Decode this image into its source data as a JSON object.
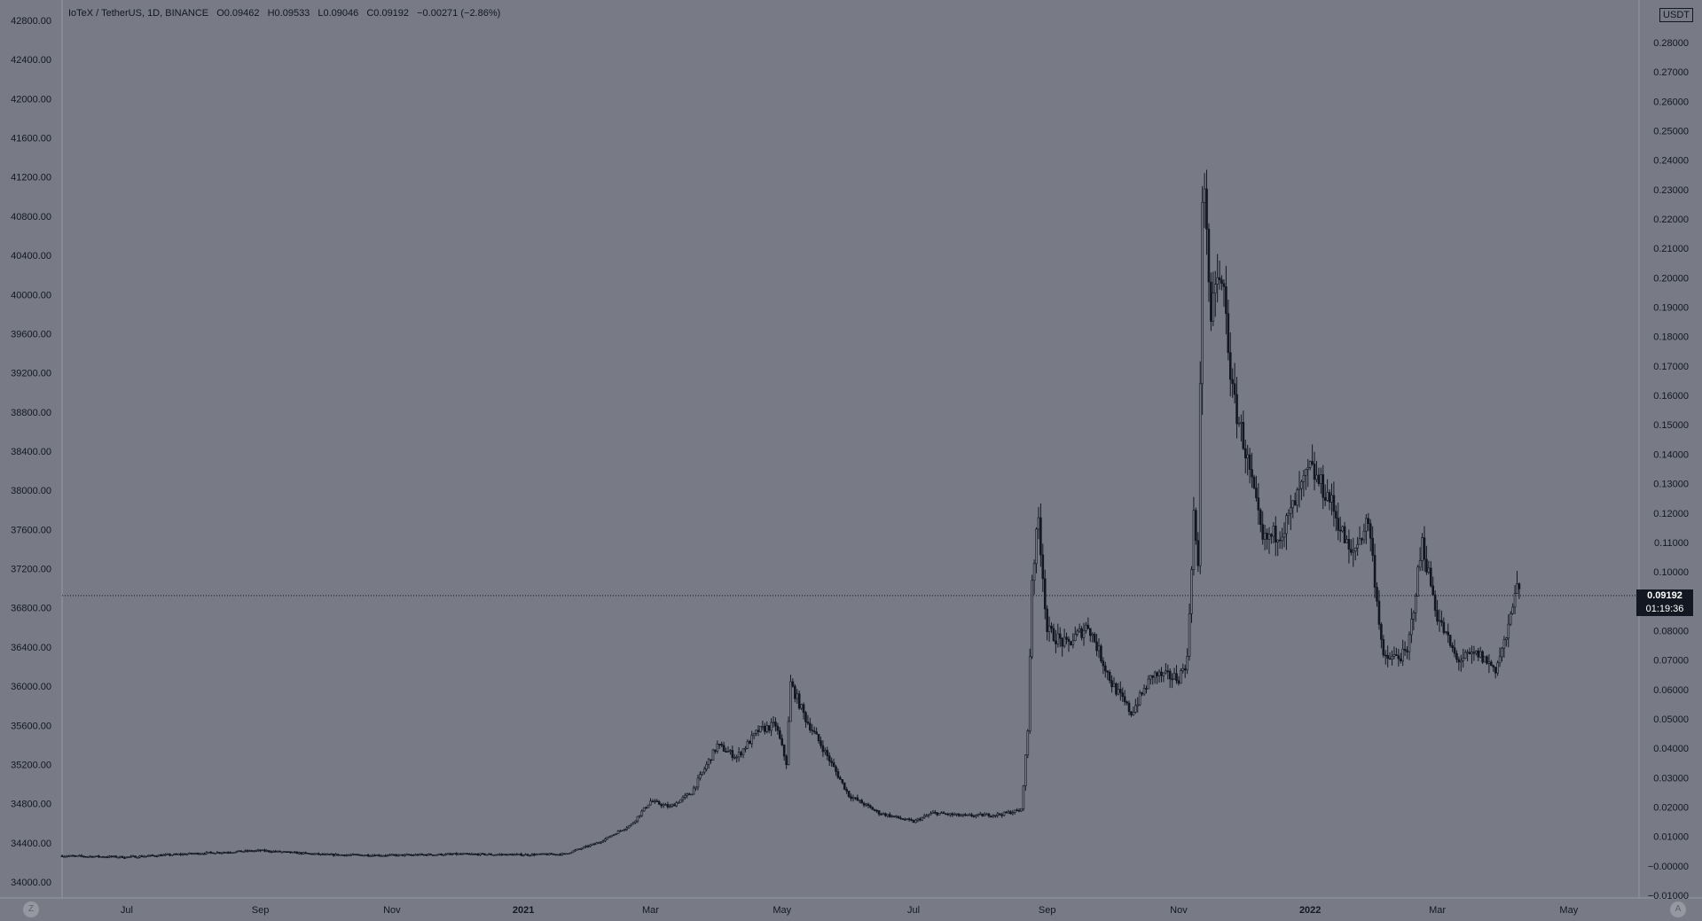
{
  "legend": {
    "symbol": "IoTeX / TetherUS, 1D, BINANCE",
    "open": "O0.09462",
    "high": "H0.09533",
    "low": "L0.09046",
    "close": "C0.09192",
    "change": "−0.00271 (−2.86%)"
  },
  "unit_badge": "USDT",
  "top_right_value": "0",
  "last_price": {
    "value": "0.09192",
    "countdown": "01:19:36"
  },
  "buttons": {
    "goto_start": "Z",
    "auto_scale": "A"
  },
  "colors": {
    "background": "#787b86",
    "text": "#131722",
    "candle": "#131722",
    "price_line": "#131722"
  },
  "chart_data": {
    "type": "candlestick",
    "title": "",
    "x_labels": [
      "Jul",
      "Sep",
      "Nov",
      "2021",
      "Mar",
      "May",
      "Jul",
      "Sep",
      "Nov",
      "2022",
      "Mar",
      "May"
    ],
    "left_axis": {
      "ticks": [
        "42800.00",
        "42400.00",
        "42000.00",
        "41600.00",
        "41200.00",
        "40800.00",
        "40400.00",
        "40000.00",
        "39600.00",
        "39200.00",
        "38800.00",
        "38400.00",
        "38000.00",
        "37600.00",
        "37200.00",
        "36800.00",
        "36400.00",
        "36000.00",
        "35600.00",
        "35200.00",
        "34800.00",
        "34400.00",
        "34000.00"
      ],
      "range": [
        34000,
        42800
      ]
    },
    "right_axis": {
      "ticks": [
        "0.28000",
        "0.27000",
        "0.26000",
        "0.25000",
        "0.24000",
        "0.23000",
        "0.22000",
        "0.21000",
        "0.20000",
        "0.19000",
        "0.18000",
        "0.17000",
        "0.16000",
        "0.15000",
        "0.14000",
        "0.13000",
        "0.12000",
        "0.11000",
        "0.10000",
        "0.09000",
        "0.08000",
        "0.07000",
        "0.06000",
        "0.05000",
        "0.04000",
        "0.03000",
        "0.02000",
        "0.01000",
        "−0.00000",
        "−0.01000"
      ],
      "range": [
        -0.01,
        0.28
      ],
      "unit": "USDT"
    },
    "series": [
      {
        "close_points": [
          [
            "2020-06-01",
            0.0034
          ],
          [
            "2020-07-01",
            0.003
          ],
          [
            "2020-08-01",
            0.0042
          ],
          [
            "2020-09-01",
            0.0052
          ],
          [
            "2020-10-01",
            0.0038
          ],
          [
            "2020-11-01",
            0.0036
          ],
          [
            "2020-12-01",
            0.004
          ],
          [
            "2021-01-01",
            0.0038
          ],
          [
            "2021-01-20",
            0.004
          ],
          [
            "2021-02-05",
            0.008
          ],
          [
            "2021-02-20",
            0.014
          ],
          [
            "2021-03-01",
            0.022
          ],
          [
            "2021-03-10",
            0.02
          ],
          [
            "2021-03-20",
            0.025
          ],
          [
            "2021-04-01",
            0.041
          ],
          [
            "2021-04-10",
            0.037
          ],
          [
            "2021-04-20",
            0.046
          ],
          [
            "2021-04-28",
            0.048
          ],
          [
            "2021-05-03",
            0.035
          ],
          [
            "2021-05-05",
            0.062
          ],
          [
            "2021-05-12",
            0.05
          ],
          [
            "2021-05-20",
            0.04
          ],
          [
            "2021-06-01",
            0.024
          ],
          [
            "2021-06-15",
            0.018
          ],
          [
            "2021-07-01",
            0.015
          ],
          [
            "2021-07-10",
            0.018
          ],
          [
            "2021-07-25",
            0.017
          ],
          [
            "2021-08-10",
            0.0175
          ],
          [
            "2021-08-20",
            0.019
          ],
          [
            "2021-08-23",
            0.046
          ],
          [
            "2021-08-25",
            0.098
          ],
          [
            "2021-08-28",
            0.118
          ],
          [
            "2021-09-01",
            0.08
          ],
          [
            "2021-09-10",
            0.075
          ],
          [
            "2021-09-20",
            0.082
          ],
          [
            "2021-10-01",
            0.062
          ],
          [
            "2021-10-10",
            0.052
          ],
          [
            "2021-10-20",
            0.065
          ],
          [
            "2021-11-01",
            0.064
          ],
          [
            "2021-11-05",
            0.07
          ],
          [
            "2021-11-08",
            0.12
          ],
          [
            "2021-11-10",
            0.1
          ],
          [
            "2021-11-12",
            0.23
          ],
          [
            "2021-11-14",
            0.22
          ],
          [
            "2021-11-16",
            0.18
          ],
          [
            "2021-11-18",
            0.2
          ],
          [
            "2021-11-22",
            0.195
          ],
          [
            "2021-11-26",
            0.16
          ],
          [
            "2021-12-01",
            0.145
          ],
          [
            "2021-12-10",
            0.11
          ],
          [
            "2021-12-20",
            0.115
          ],
          [
            "2022-01-01",
            0.135
          ],
          [
            "2022-01-10",
            0.125
          ],
          [
            "2022-01-20",
            0.105
          ],
          [
            "2022-01-28",
            0.118
          ],
          [
            "2022-02-04",
            0.07
          ],
          [
            "2022-02-15",
            0.072
          ],
          [
            "2022-02-22",
            0.11
          ],
          [
            "2022-03-01",
            0.085
          ],
          [
            "2022-03-10",
            0.07
          ],
          [
            "2022-03-20",
            0.072
          ],
          [
            "2022-03-28",
            0.067
          ],
          [
            "2022-04-03",
            0.08
          ],
          [
            "2022-04-06",
            0.095
          ],
          [
            "2022-04-08",
            0.0919
          ]
        ]
      }
    ],
    "last": {
      "open": 0.09462,
      "high": 0.09533,
      "low": 0.09046,
      "close": 0.09192
    }
  }
}
